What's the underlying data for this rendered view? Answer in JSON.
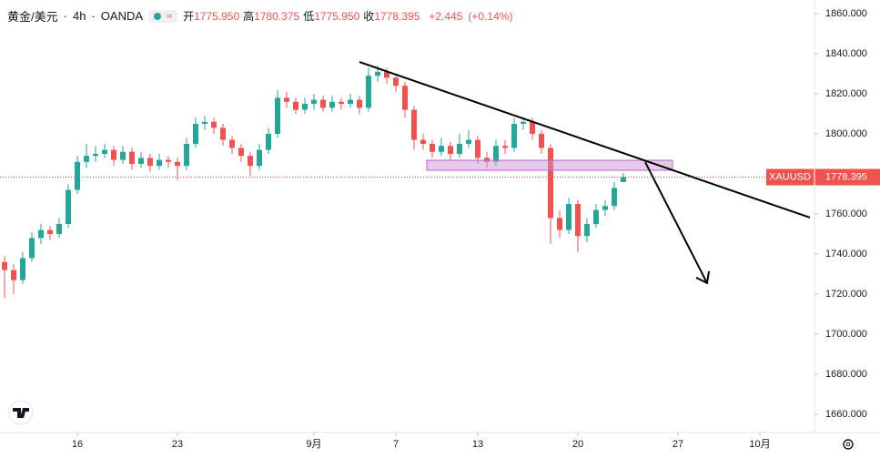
{
  "header": {
    "symbol": "黄金/美元",
    "interval": "4h",
    "source": "OANDA",
    "ohlc": [
      {
        "label": "开",
        "value": "1775.950"
      },
      {
        "label": "高",
        "value": "1780.375"
      },
      {
        "label": "低",
        "value": "1775.950"
      },
      {
        "label": "收",
        "value": "1778.395"
      }
    ],
    "change": "+2.445",
    "change_pct": "(+0.14%)"
  },
  "chart_data": {
    "type": "candlestick",
    "up_color": "#26a69a",
    "down_color": "#ef5350",
    "open": [
      1736,
      1732,
      1727,
      1738,
      1748,
      1752,
      1750,
      1755,
      1772,
      1786,
      1789,
      1790,
      1792,
      1787,
      1791,
      1785,
      1788,
      1784,
      1787,
      1786,
      1784,
      1795,
      1805,
      1806,
      1803,
      1797,
      1793,
      1789,
      1784,
      1792,
      1800,
      1818,
      1816,
      1812,
      1815,
      1817,
      1813,
      1816,
      1815,
      1817,
      1813,
      1829,
      1831,
      1828,
      1824,
      1812,
      1797,
      1795,
      1791,
      1794,
      1790,
      1795,
      1797,
      1788,
      1786,
      1794,
      1793,
      1805,
      1806,
      1800,
      1793,
      1758,
      1752,
      1765,
      1749,
      1755,
      1762,
      1764,
      1775.95
    ],
    "high": [
      1739,
      1735,
      1741,
      1751,
      1755,
      1754,
      1758,
      1775,
      1789,
      1795,
      1794,
      1795,
      1794,
      1794,
      1793,
      1791,
      1790,
      1790,
      1789,
      1788,
      1798,
      1808,
      1809,
      1808,
      1805,
      1799,
      1795,
      1791,
      1795,
      1803,
      1822,
      1821,
      1818,
      1818,
      1820,
      1819,
      1819,
      1818,
      1820,
      1819,
      1833,
      1834,
      1833,
      1830,
      1826,
      1814,
      1800,
      1797,
      1798,
      1796,
      1800,
      1802,
      1799,
      1791,
      1797,
      1797,
      1808,
      1808,
      1808,
      1802,
      1795,
      1762,
      1768,
      1767,
      1758,
      1765,
      1767,
      1776,
      1780.375
    ],
    "low": [
      1718,
      1720,
      1725,
      1736,
      1745,
      1747,
      1748,
      1753,
      1770,
      1783,
      1786,
      1788,
      1784,
      1785,
      1782,
      1783,
      1781,
      1782,
      1783,
      1777,
      1782,
      1793,
      1802,
      1800,
      1794,
      1790,
      1786,
      1779,
      1782,
      1790,
      1798,
      1813,
      1810,
      1810,
      1812,
      1811,
      1811,
      1812,
      1813,
      1810,
      1811,
      1826,
      1825,
      1821,
      1808,
      1792,
      1792,
      1788,
      1789,
      1787,
      1788,
      1793,
      1785,
      1783,
      1784,
      1790,
      1791,
      1802,
      1797,
      1790,
      1745,
      1748,
      1750,
      1741,
      1746,
      1753,
      1759,
      1762,
      1775.95
    ],
    "close": [
      1732,
      1727,
      1738,
      1748,
      1752,
      1750,
      1755,
      1772,
      1786,
      1789,
      1790,
      1792,
      1787,
      1791,
      1785,
      1788,
      1784,
      1787,
      1786,
      1784,
      1795,
      1805,
      1806,
      1803,
      1797,
      1793,
      1789,
      1784,
      1792,
      1800,
      1818,
      1816,
      1812,
      1815,
      1817,
      1813,
      1816,
      1815,
      1817,
      1813,
      1829,
      1831,
      1828,
      1824,
      1812,
      1797,
      1795,
      1791,
      1794,
      1790,
      1795,
      1797,
      1788,
      1786,
      1794,
      1793,
      1805,
      1806,
      1800,
      1793,
      1758,
      1752,
      1765,
      1749,
      1755,
      1762,
      1764,
      1773,
      1778.395
    ],
    "xlim": [
      -0.5,
      89
    ],
    "xticks": [
      {
        "value": 8,
        "label": "16"
      },
      {
        "value": 19,
        "label": "23"
      },
      {
        "value": 34,
        "label": "9月"
      },
      {
        "value": 43,
        "label": "7"
      },
      {
        "value": 52,
        "label": "13"
      },
      {
        "value": 63,
        "label": "20"
      },
      {
        "value": 74,
        "label": "27"
      },
      {
        "value": 83,
        "label": "10月"
      }
    ],
    "ylim": [
      1660,
      1860
    ],
    "yticks": [
      {
        "value": 1660,
        "label": "1660.000"
      },
      {
        "value": 1680,
        "label": "1680.000"
      },
      {
        "value": 1700,
        "label": "1700.000"
      },
      {
        "value": 1720,
        "label": "1720.000"
      },
      {
        "value": 1740,
        "label": "1740.000"
      },
      {
        "value": 1760,
        "label": "1760.000"
      },
      {
        "value": 1780,
        "label": "1780.000"
      },
      {
        "value": 1800,
        "label": "1800.000"
      },
      {
        "value": 1820,
        "label": "1820.000"
      },
      {
        "value": 1840,
        "label": "1840.000"
      },
      {
        "value": 1860,
        "label": "1860.000"
      }
    ],
    "price_tag": {
      "name": "XAUUSD",
      "label": "1778.395",
      "value": 1778.395
    },
    "trendline": {
      "x": [
        39,
        88.5
      ],
      "y": [
        1835.9,
        1758.2
      ]
    },
    "zone": {
      "x": [
        46.4,
        73.4
      ],
      "y": [
        1786.8,
        1781.8
      ]
    },
    "arrow": {
      "x": [
        70.4,
        77.2
      ],
      "y": [
        1785.9,
        1725.5
      ]
    }
  }
}
